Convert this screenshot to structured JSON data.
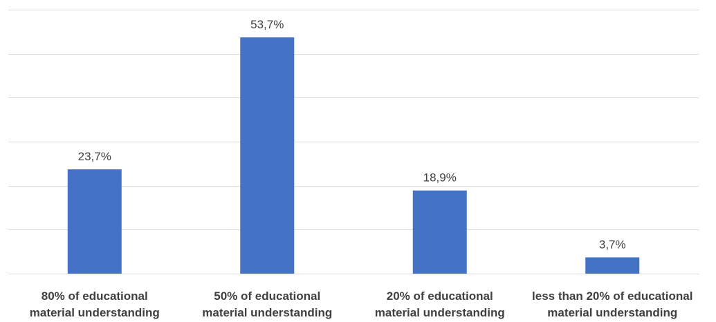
{
  "chart_data": {
    "type": "bar",
    "categories": [
      [
        "80% of educational",
        "material understanding"
      ],
      [
        "50% of educational",
        "material understanding"
      ],
      [
        "20% of educational",
        "material understanding"
      ],
      [
        "less than 20% of educational",
        "material understanding"
      ]
    ],
    "values": [
      23.7,
      53.7,
      18.9,
      3.7
    ],
    "data_labels": [
      "23,7%",
      "53,7%",
      "18,9%",
      "3,7%"
    ],
    "title": "",
    "xlabel": "",
    "ylabel": "",
    "ylim": [
      0,
      60
    ],
    "grid": true,
    "legend": "none",
    "colors": {
      "bar": "#4472c4",
      "grid": "#d9d9d9",
      "text": "#404040"
    }
  }
}
